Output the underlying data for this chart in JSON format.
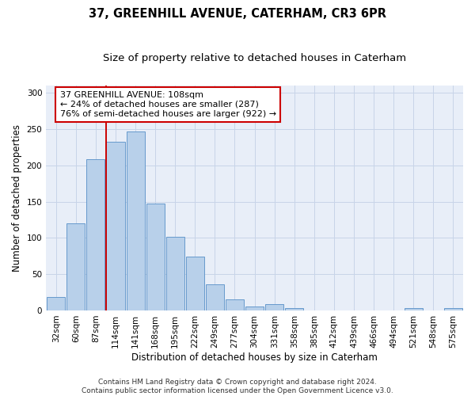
{
  "title": "37, GREENHILL AVENUE, CATERHAM, CR3 6PR",
  "subtitle": "Size of property relative to detached houses in Caterham",
  "xlabel": "Distribution of detached houses by size in Caterham",
  "ylabel": "Number of detached properties",
  "bar_labels": [
    "32sqm",
    "60sqm",
    "87sqm",
    "114sqm",
    "141sqm",
    "168sqm",
    "195sqm",
    "222sqm",
    "249sqm",
    "277sqm",
    "304sqm",
    "331sqm",
    "358sqm",
    "385sqm",
    "412sqm",
    "439sqm",
    "466sqm",
    "494sqm",
    "521sqm",
    "548sqm",
    "575sqm"
  ],
  "bar_values": [
    19,
    120,
    209,
    232,
    247,
    147,
    101,
    74,
    36,
    15,
    5,
    9,
    3,
    0,
    0,
    0,
    0,
    0,
    3,
    0,
    3
  ],
  "bar_color": "#b8d0ea",
  "bar_edge_color": "#6699cc",
  "vline_color": "#cc0000",
  "annotation_text": "37 GREENHILL AVENUE: 108sqm\n← 24% of detached houses are smaller (287)\n76% of semi-detached houses are larger (922) →",
  "annotation_box_facecolor": "#ffffff",
  "annotation_box_edgecolor": "#cc0000",
  "ylim": [
    0,
    310
  ],
  "yticks": [
    0,
    50,
    100,
    150,
    200,
    250,
    300
  ],
  "plot_bg_color": "#e8eef8",
  "fig_bg_color": "#ffffff",
  "grid_color": "#c8d4e8",
  "title_fontsize": 10.5,
  "subtitle_fontsize": 9.5,
  "axis_label_fontsize": 8.5,
  "tick_fontsize": 7.5,
  "annotation_fontsize": 8,
  "footer_fontsize": 6.5,
  "footer_text": "Contains HM Land Registry data © Crown copyright and database right 2024.\nContains public sector information licensed under the Open Government Licence v3.0."
}
